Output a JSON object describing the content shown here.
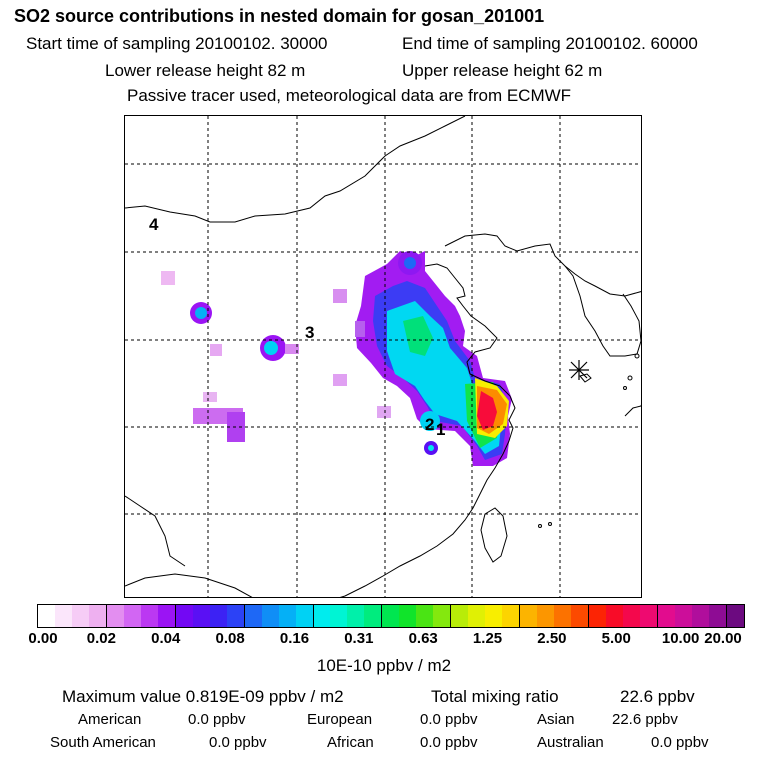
{
  "title": "SO2 source contributions in nested domain for gosan_201001",
  "sampling": {
    "start": "Start time of sampling 20100102. 30000",
    "end": "End time of sampling 20100102. 60000"
  },
  "release": {
    "lower": "Lower release height   82 m",
    "upper": "Upper release height   62 m"
  },
  "tracer_note": "Passive tracer used, meteorological data are from ECMWF",
  "map": {
    "region_labels": [
      "4",
      "3",
      "2",
      "1"
    ],
    "receptor_marker": "gosan-receptor"
  },
  "colorbar": {
    "ticks": [
      "0.00",
      "0.02",
      "0.04",
      "0.08",
      "0.16",
      "0.31",
      "0.63",
      "1.25",
      "2.50",
      "5.00",
      "10.00",
      "20.00"
    ],
    "unit": "10E-10 ppbv / m2",
    "colors": [
      "#ffffff",
      "#fbe6fb",
      "#f6ccf6",
      "#eeb0f0",
      "#e38ef0",
      "#d266f3",
      "#bb38f2",
      "#9b14f4",
      "#7308f4",
      "#5a10f4",
      "#3c22f4",
      "#2c42f6",
      "#1e68f6",
      "#108ef6",
      "#05b0f6",
      "#00d2f4",
      "#00ecee",
      "#00f4d4",
      "#00f0aa",
      "#00ec7e",
      "#00e650",
      "#10e42a",
      "#4ae414",
      "#84e80e",
      "#b8ec08",
      "#e0f004",
      "#f8ee00",
      "#fcd400",
      "#fcb400",
      "#fc9600",
      "#fc7200",
      "#fc4a00",
      "#fc2404",
      "#f80c28",
      "#f4084c",
      "#ee0a70",
      "#e20c8e",
      "#cc0e9a",
      "#b00e9c",
      "#8e0c94",
      "#6c0a80"
    ]
  },
  "summary": {
    "maximum_label": "Maximum value  0.819E-09 ppbv / m2",
    "total_label": "Total mixing ratio",
    "total_value": "22.6 ppbv",
    "contributions": [
      {
        "region": "American",
        "value": "0.0 ppbv"
      },
      {
        "region": "European",
        "value": "0.0 ppbv"
      },
      {
        "region": "Asian",
        "value": "22.6 ppbv"
      },
      {
        "region": "South American",
        "value": "0.0 ppbv"
      },
      {
        "region": "African",
        "value": "0.0 ppbv"
      },
      {
        "region": "Australian",
        "value": "0.0 ppbv"
      }
    ]
  }
}
